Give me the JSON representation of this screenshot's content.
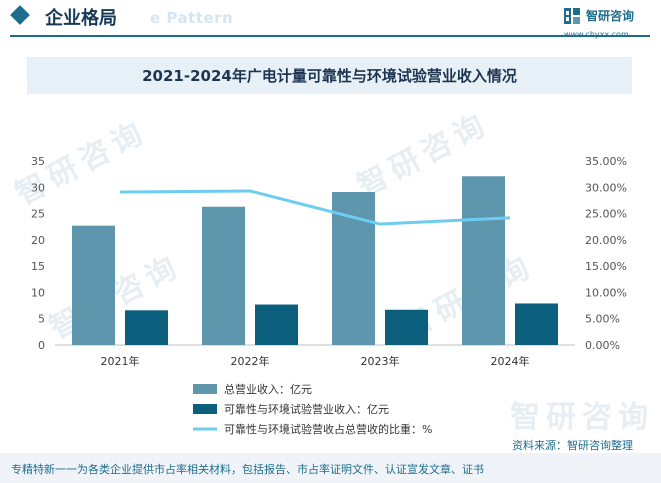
{
  "header": {
    "section_title": "企业格局",
    "ghost_text": "e Pattern",
    "brand_name": "智研咨询",
    "brand_url": "www.chyxx.com"
  },
  "watermark": "智研咨询",
  "chart_data": {
    "type": "bar",
    "title": "2021-2024年广电计量可靠性与环境试验营业收入情况",
    "categories": [
      "2021年",
      "2022年",
      "2023年",
      "2024年"
    ],
    "series": [
      {
        "name": "总营业收入：亿元",
        "kind": "bar",
        "axis": "left",
        "color": "#5e96ae",
        "values": [
          22.7,
          26.3,
          29.1,
          32.1
        ]
      },
      {
        "name": "可靠性与环境试验营业收入：亿元",
        "kind": "bar",
        "axis": "left",
        "color": "#0b5f7d",
        "values": [
          6.6,
          7.7,
          6.7,
          7.9
        ]
      },
      {
        "name": "可靠性与环境试验营收占总营收的比重：%",
        "kind": "line",
        "axis": "right",
        "color": "#6dcdf0",
        "values": [
          29.1,
          29.3,
          23.0,
          24.2
        ]
      }
    ],
    "y_left": {
      "min": 0,
      "max": 35,
      "ticks": [
        "0",
        "5",
        "10",
        "15",
        "20",
        "25",
        "30",
        "35"
      ]
    },
    "y_right": {
      "min": 0,
      "max": 35,
      "ticks": [
        "0.00%",
        "5.00%",
        "10.00%",
        "15.00%",
        "20.00%",
        "25.00%",
        "30.00%",
        "35.00%"
      ]
    },
    "grid": false,
    "legend_position": "bottom"
  },
  "source": "资料来源：智研咨询整理",
  "footer": "专精特新一一为各类企业提供市占率相关材料，包括报告、市占率证明文件、认证宣发文章、证书"
}
